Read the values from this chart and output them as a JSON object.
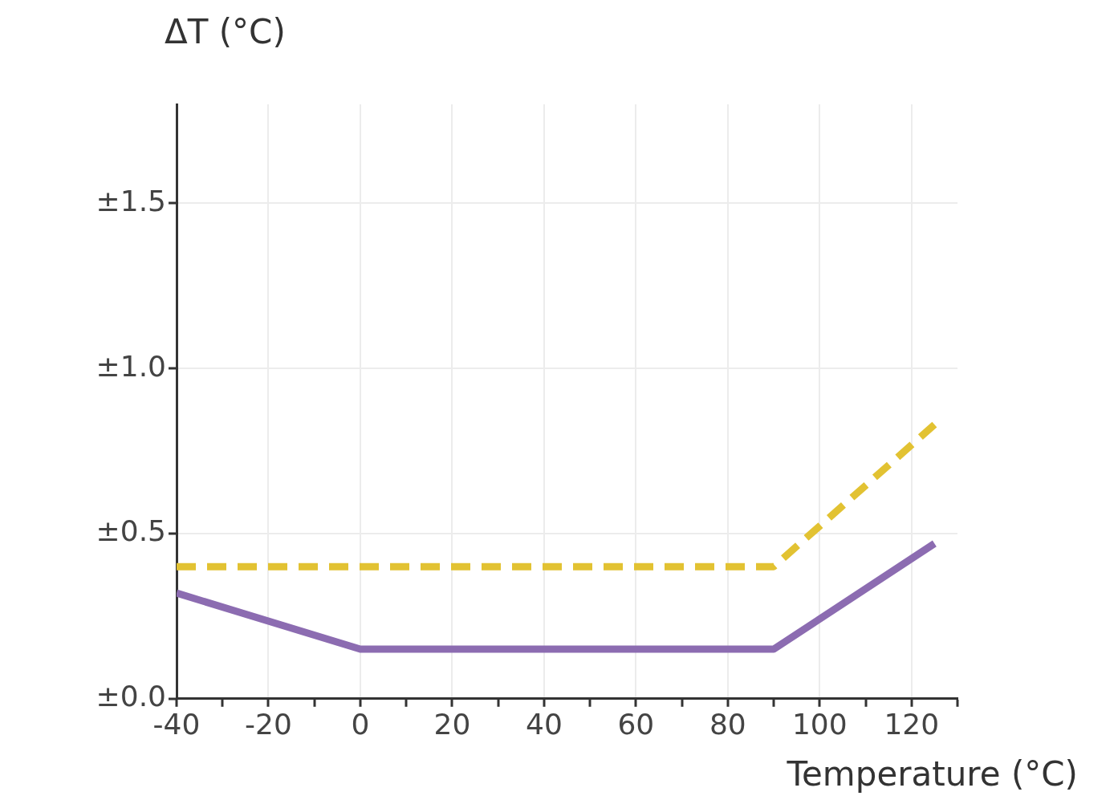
{
  "chart_data": {
    "type": "line",
    "xlabel": "Temperature (°C)",
    "ylabel": "ΔT (°C)",
    "xlim": [
      -40,
      130
    ],
    "xticks": [
      -40,
      {
        "value": -30,
        "label": null
      },
      -20,
      {
        "value": -10,
        "label": null
      },
      0,
      {
        "value": 10,
        "label": null
      },
      20,
      {
        "value": 30,
        "label": null
      },
      40,
      {
        "value": 50,
        "label": null
      },
      60,
      {
        "value": 70,
        "label": null
      },
      80,
      {
        "value": 90,
        "label": null
      },
      100,
      {
        "value": 110,
        "label": null
      },
      120,
      {
        "value": 130,
        "label": null
      }
    ],
    "ylim": [
      0,
      1.8
    ],
    "yticks": [
      {
        "value": 0,
        "label": "±0.0"
      },
      {
        "value": 0.5,
        "label": "±0.5"
      },
      {
        "value": 1,
        "label": "±1.0"
      },
      {
        "value": 1.5,
        "label": "±1.5"
      }
    ],
    "grid": true,
    "legend": false,
    "marker": "none",
    "series": [
      {
        "color": "#e2c232",
        "line_style": "dashed",
        "x": [
          -40,
          90,
          125
        ],
        "values": [
          0.4,
          0.4,
          0.83
        ]
      },
      {
        "color": "#8c6cb1",
        "line_style": "solid",
        "x": [
          -40,
          0,
          90,
          125
        ],
        "values": [
          0.32,
          0.15,
          0.15,
          0.47
        ]
      }
    ]
  }
}
